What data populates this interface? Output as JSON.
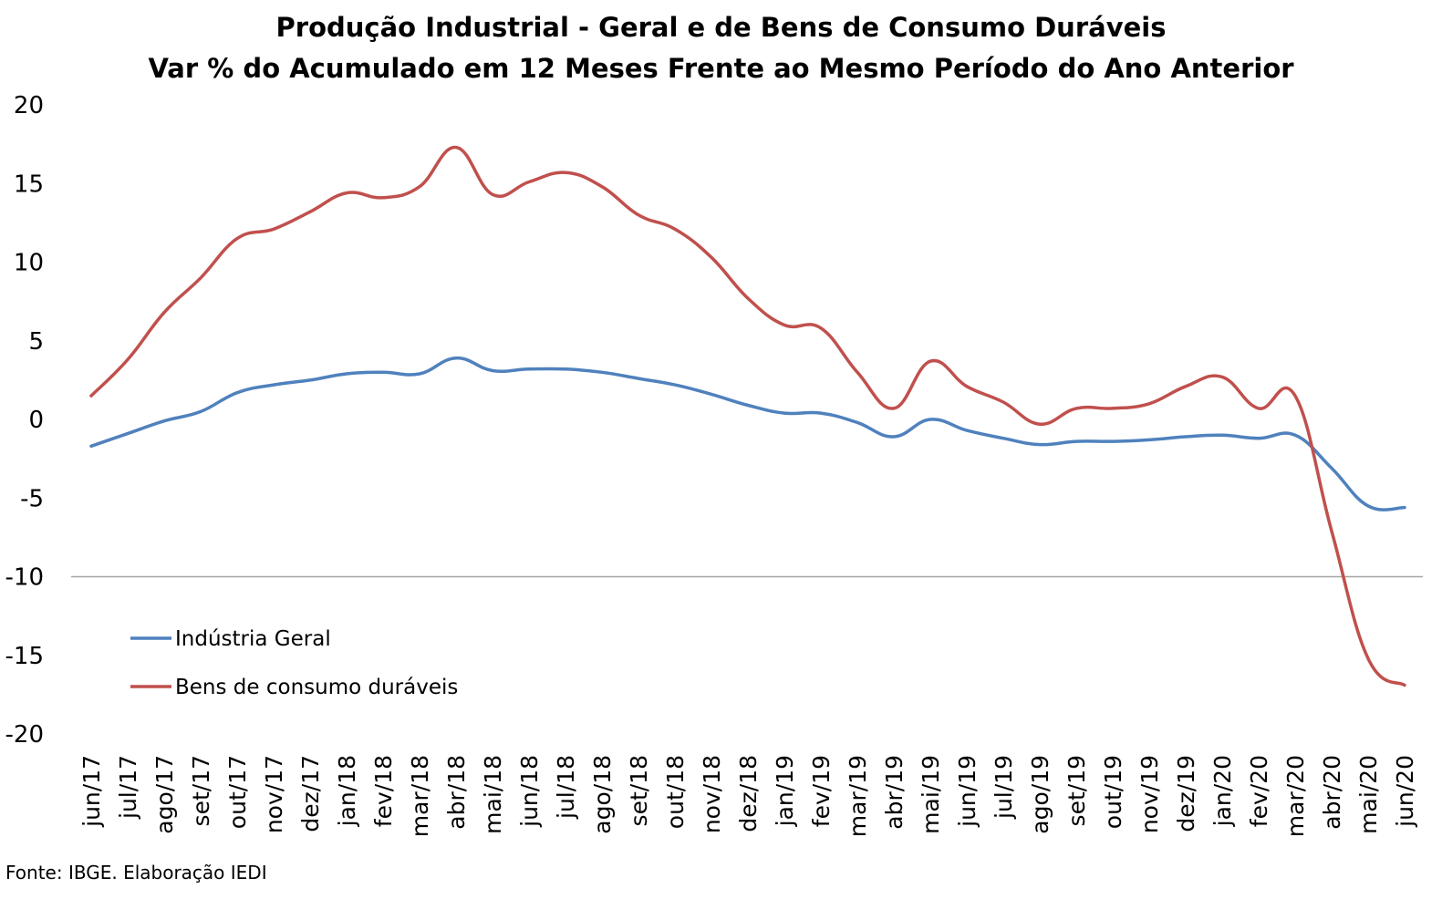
{
  "title_line1": "Produção Industrial - Geral e de Bens de Consumo Duráveis",
  "title_line2": "Var % do Acumulado em 12 Meses Frente ao Mesmo Período do Ano Anterior",
  "source": "Fonte: IBGE. Elaboração IEDI",
  "chart_data": {
    "type": "line",
    "title": "Produção Industrial - Geral e de Bens de Consumo Duráveis",
    "subtitle": "Var % do Acumulado em 12 Meses Frente ao Mesmo Período do Ano Anterior",
    "categories": [
      "jun/17",
      "jul/17",
      "ago/17",
      "set/17",
      "out/17",
      "nov/17",
      "dez/17",
      "jan/18",
      "fev/18",
      "mar/18",
      "abr/18",
      "mai/18",
      "jun/18",
      "jul/18",
      "ago/18",
      "set/18",
      "out/18",
      "nov/18",
      "dez/18",
      "jan/19",
      "fev/19",
      "mar/19",
      "abr/19",
      "mai/19",
      "jun/19",
      "jul/19",
      "ago/19",
      "set/19",
      "out/19",
      "nov/19",
      "dez/19",
      "jan/20",
      "fev/20",
      "mar/20",
      "abr/20",
      "mai/20",
      "jun/20"
    ],
    "yticks": [
      20,
      15,
      10,
      5,
      0,
      -5,
      -10,
      -15,
      -20
    ],
    "ylim": [
      -20,
      20
    ],
    "reference_line": -10,
    "legend_position": "lower-left",
    "series": [
      {
        "name": "Indústria Geral",
        "color": "#4F81BD",
        "values": [
          -1.7,
          -0.9,
          -0.1,
          0.5,
          1.7,
          2.2,
          2.5,
          2.9,
          3.0,
          2.9,
          3.9,
          3.1,
          3.2,
          3.2,
          3.0,
          2.6,
          2.2,
          1.6,
          0.9,
          0.4,
          0.4,
          -0.2,
          -1.1,
          0.0,
          -0.7,
          -1.2,
          -1.6,
          -1.4,
          -1.4,
          -1.3,
          -1.1,
          -1.0,
          -1.2,
          -1.0,
          -3.1,
          -5.5,
          -5.6
        ]
      },
      {
        "name": "Bens de consumo duráveis",
        "color": "#C0504D",
        "values": [
          1.5,
          3.8,
          6.8,
          9.0,
          11.5,
          12.1,
          13.2,
          14.4,
          14.1,
          14.8,
          17.3,
          14.3,
          15.1,
          15.7,
          14.8,
          13.0,
          12.1,
          10.3,
          7.7,
          6.0,
          5.8,
          3.0,
          0.7,
          3.7,
          2.1,
          1.1,
          -0.3,
          0.7,
          0.7,
          1.0,
          2.1,
          2.7,
          0.7,
          1.5,
          -7.1,
          -15.2,
          -16.9
        ]
      }
    ]
  }
}
